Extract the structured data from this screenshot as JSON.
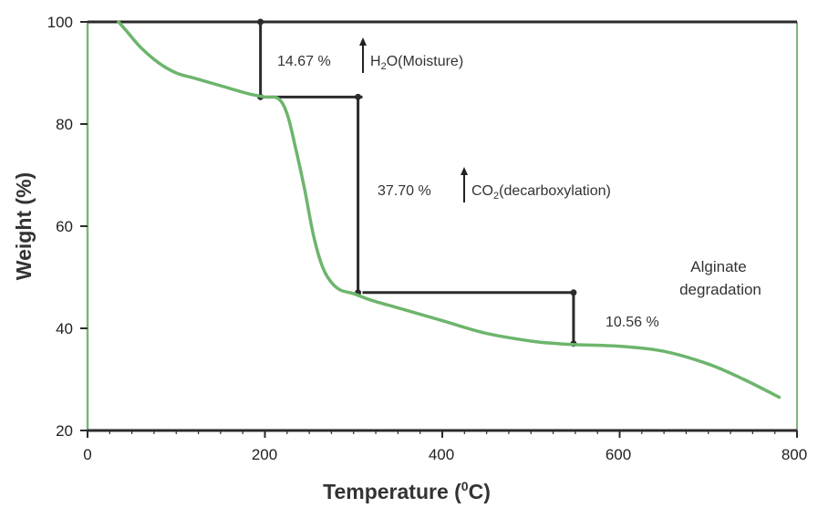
{
  "chart_data": {
    "type": "line",
    "xlabel": "Temperature (",
    "xlabel_sup": "0",
    "xlabel_end": "C)",
    "ylabel": "Weight (%)",
    "xlim": [
      0,
      800
    ],
    "ylim": [
      20,
      100
    ],
    "xticks": [
      0,
      200,
      400,
      600,
      800
    ],
    "yticks": [
      20,
      40,
      60,
      80,
      100
    ],
    "grid": false,
    "line_color": "#6db56d",
    "frame_color": "#7ab87a",
    "step_color": "#2b2b2b",
    "series": [
      {
        "x": [
          35,
          45,
          60,
          80,
          100,
          120,
          150,
          180,
          200,
          215,
          225,
          235,
          245,
          255,
          265,
          275,
          285,
          300,
          320,
          350,
          400,
          450,
          500,
          530,
          550,
          600,
          650,
          700,
          740,
          780
        ],
        "y": [
          100,
          98,
          95,
          92,
          90,
          89,
          87.5,
          86,
          85.3,
          85,
          82,
          75,
          67,
          58,
          52,
          49,
          47.5,
          46.8,
          45.5,
          44,
          41.5,
          39,
          37.5,
          37,
          36.8,
          36.5,
          35.5,
          33,
          30,
          26.5
        ]
      }
    ],
    "steps": [
      {
        "x_from": 195,
        "x_to": 310,
        "y": 85.3
      },
      {
        "x_from": 310,
        "x_to": 550,
        "y": 47
      },
      {
        "x_from": 195,
        "y_from": 100,
        "y_to": 85.3
      },
      {
        "x_from": 305,
        "y_from": 85.3,
        "y_to": 47
      },
      {
        "x_from": 548,
        "y_from": 47,
        "y_to": 37
      }
    ],
    "top_reference": {
      "x_from": 0,
      "x_to": 800,
      "y": 100
    },
    "annotations": {
      "step1_pct": "14.67 %",
      "step1_label_a": "H",
      "step1_label_sub": "2",
      "step1_label_b": "O(Moisture)",
      "step2_pct": "37.70 %",
      "step2_label_a": "CO",
      "step2_label_sub": "2",
      "step2_label_b": "(decarboxylation)",
      "step3_label_line1": "Alginate",
      "step3_label_line2": "degradation",
      "step3_pct": "10.56 %"
    }
  }
}
